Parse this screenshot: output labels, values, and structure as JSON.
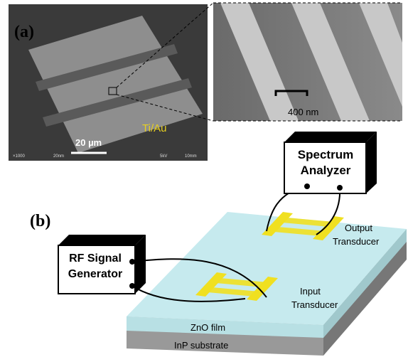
{
  "panel_a": {
    "label": "(a)",
    "sem_scale_bar": "20 µm",
    "metal": "Ti/Au",
    "sem_footer": [
      "×1000",
      "20nm",
      "5kV",
      "10mm"
    ],
    "zoom_scale": "400 nm"
  },
  "panel_b": {
    "label": "(b)",
    "analyzer": [
      "Spectrum",
      "Analyzer"
    ],
    "generator": [
      "RF Signal",
      "Generator"
    ],
    "output": [
      "Output",
      "Transducer"
    ],
    "input": [
      "Input",
      "Transducer"
    ],
    "film": "ZnO film",
    "substrate": "InP substrate"
  }
}
